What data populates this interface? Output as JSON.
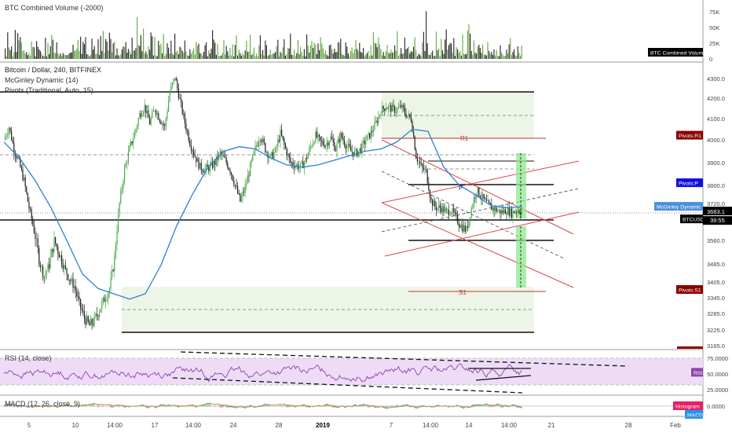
{
  "volume_panel": {
    "title": "BTC Combined Volume (-2000)",
    "badge": "BTC Combined Volume",
    "ticks": [
      {
        "v": 75000,
        "label": "75K"
      },
      {
        "v": 50000,
        "label": "50K"
      },
      {
        "v": 25000,
        "label": "25K"
      },
      {
        "v": 0,
        "label": "0"
      }
    ]
  },
  "price_panel": {
    "title": "Bitcoin / Dollar, 240, BITFINEX",
    "indicator1": "McGinley Dynamic (14)",
    "indicator2": "Pivots (Traditional, Auto, 15)",
    "ticks": [
      "4300.0",
      "4200.0",
      "4100.0",
      "4000.0",
      "3900.0",
      "3800.0",
      "3720.0",
      "3640.0",
      "3560.0",
      "3485.0",
      "3405.0",
      "3345.0",
      "3285.0",
      "3225.0",
      "3165.0"
    ],
    "pivot_labels": {
      "r1": "R1",
      "p": "P",
      "s1": "S1"
    },
    "badges": [
      {
        "text": "Pivots:R1",
        "value": 4020,
        "color": "#8b0000"
      },
      {
        "text": "Pivots:P",
        "value": 3810,
        "color": "#1010e0"
      },
      {
        "text": "McGinley Dynamic",
        "value": 3705,
        "color": "#4a90d9"
      },
      {
        "text": "BTCUSD",
        "value": 3683.1,
        "color": "#000000"
      },
      {
        "text": "Pivots:S1",
        "value": 3375,
        "color": "#8b0000"
      }
    ],
    "last_price": "3683.1",
    "countdown": "39:55"
  },
  "rsi_panel": {
    "title": "RSI (14, close)",
    "badge": "RSI",
    "ticks": [
      {
        "v": 75,
        "label": "75.0000"
      },
      {
        "v": 50,
        "label": "50.0000"
      },
      {
        "v": 25,
        "label": "25.0000"
      }
    ]
  },
  "macd_panel": {
    "title": "MACD (12, 26, close, 9)",
    "badges": [
      "Histogram",
      "MACD"
    ],
    "ticks": [
      {
        "v": 0,
        "label": "0.0000"
      }
    ]
  },
  "x_axis": {
    "ticks": [
      "5",
      "10",
      "14:00",
      "17",
      "14:00",
      "24",
      "28",
      "2019",
      "7",
      "14:00",
      "14",
      "14:00",
      "21",
      "28",
      "Feb"
    ]
  },
  "chart_data": {
    "type": "candlestick",
    "title": "Bitcoin / Dollar, 240, BITFINEX",
    "symbol": "BTCUSD",
    "timeframe": "240",
    "exchange": "BITFINEX",
    "xlabel": "",
    "ylabel": "",
    "ylim": [
      3165,
      4300
    ],
    "last_price": 3683.1,
    "close_path": [
      [
        0,
        4000
      ],
      [
        4,
        4060
      ],
      [
        8,
        3960
      ],
      [
        12,
        3900
      ],
      [
        16,
        3820
      ],
      [
        20,
        3700
      ],
      [
        24,
        3600
      ],
      [
        28,
        3500
      ],
      [
        32,
        3430
      ],
      [
        36,
        3480
      ],
      [
        40,
        3560
      ],
      [
        44,
        3520
      ],
      [
        48,
        3470
      ],
      [
        52,
        3420
      ],
      [
        56,
        3390
      ],
      [
        60,
        3320
      ],
      [
        64,
        3270
      ],
      [
        68,
        3240
      ],
      [
        72,
        3260
      ],
      [
        76,
        3300
      ],
      [
        80,
        3340
      ],
      [
        84,
        3380
      ],
      [
        88,
        3500
      ],
      [
        92,
        3720
      ],
      [
        96,
        3870
      ],
      [
        100,
        3960
      ],
      [
        104,
        4030
      ],
      [
        108,
        4120
      ],
      [
        112,
        4160
      ],
      [
        116,
        4080
      ],
      [
        120,
        4150
      ],
      [
        124,
        4100
      ],
      [
        128,
        4060
      ],
      [
        132,
        4230
      ],
      [
        136,
        4310
      ],
      [
        140,
        4190
      ],
      [
        144,
        4080
      ],
      [
        148,
        3990
      ],
      [
        152,
        3930
      ],
      [
        156,
        3880
      ],
      [
        160,
        3870
      ],
      [
        164,
        3880
      ],
      [
        168,
        3900
      ],
      [
        172,
        3940
      ],
      [
        176,
        3910
      ],
      [
        180,
        3870
      ],
      [
        184,
        3800
      ],
      [
        188,
        3730
      ],
      [
        192,
        3790
      ],
      [
        196,
        3880
      ],
      [
        200,
        3960
      ],
      [
        204,
        4020
      ],
      [
        208,
        3960
      ],
      [
        212,
        3920
      ],
      [
        216,
        3950
      ],
      [
        220,
        4030
      ],
      [
        224,
        3960
      ],
      [
        228,
        3900
      ],
      [
        232,
        3890
      ],
      [
        236,
        3880
      ],
      [
        240,
        3910
      ],
      [
        244,
        3970
      ],
      [
        248,
        4020
      ],
      [
        252,
        3990
      ],
      [
        256,
        3980
      ],
      [
        260,
        4010
      ],
      [
        264,
        3960
      ],
      [
        268,
        4020
      ],
      [
        272,
        3980
      ],
      [
        276,
        3950
      ],
      [
        280,
        3940
      ],
      [
        284,
        3960
      ],
      [
        288,
        4000
      ],
      [
        292,
        4030
      ],
      [
        296,
        4080
      ],
      [
        300,
        4140
      ],
      [
        304,
        4160
      ],
      [
        308,
        4150
      ],
      [
        312,
        4140
      ],
      [
        316,
        4160
      ],
      [
        320,
        4120
      ],
      [
        324,
        4100
      ],
      [
        328,
        3930
      ],
      [
        332,
        3880
      ],
      [
        336,
        3860
      ],
      [
        340,
        3730
      ],
      [
        344,
        3700
      ],
      [
        348,
        3700
      ],
      [
        352,
        3680
      ],
      [
        356,
        3690
      ],
      [
        360,
        3650
      ],
      [
        364,
        3620
      ],
      [
        368,
        3600
      ],
      [
        372,
        3700
      ],
      [
        376,
        3780
      ],
      [
        380,
        3750
      ],
      [
        384,
        3720
      ],
      [
        388,
        3700
      ],
      [
        392,
        3690
      ],
      [
        396,
        3680
      ],
      [
        400,
        3690
      ],
      [
        404,
        3675
      ],
      [
        408,
        3690
      ],
      [
        412,
        3683
      ]
    ],
    "mcginley_path": [
      [
        0,
        3990
      ],
      [
        20,
        3920
      ],
      [
        40,
        3820
      ],
      [
        60,
        3700
      ],
      [
        80,
        3560
      ],
      [
        100,
        3440
      ],
      [
        120,
        3380
      ],
      [
        140,
        3360
      ],
      [
        160,
        3340
      ],
      [
        180,
        3360
      ],
      [
        200,
        3480
      ],
      [
        220,
        3620
      ],
      [
        240,
        3760
      ],
      [
        260,
        3880
      ],
      [
        280,
        3950
      ],
      [
        300,
        3970
      ],
      [
        320,
        3960
      ],
      [
        340,
        3920
      ],
      [
        360,
        3890
      ],
      [
        380,
        3880
      ],
      [
        400,
        3890
      ],
      [
        420,
        3910
      ],
      [
        440,
        3930
      ],
      [
        460,
        3950
      ],
      [
        480,
        3960
      ],
      [
        500,
        3990
      ],
      [
        520,
        4050
      ],
      [
        540,
        4040
      ],
      [
        560,
        3880
      ],
      [
        580,
        3800
      ],
      [
        600,
        3760
      ],
      [
        620,
        3710
      ],
      [
        640,
        3700
      ],
      [
        660,
        3705
      ]
    ],
    "pivots": {
      "R1": 4020,
      "P": 3810,
      "S1": 3375,
      "upper_band": 4230,
      "lower_band": 3210
    },
    "volume": {
      "ylim": [
        0,
        80000
      ],
      "max_bar": 78000
    },
    "rsi": {
      "ylim": [
        20,
        80
      ],
      "overbought": 70,
      "oversold": 30,
      "last": 52
    },
    "macd": {
      "last": 0.0
    }
  }
}
